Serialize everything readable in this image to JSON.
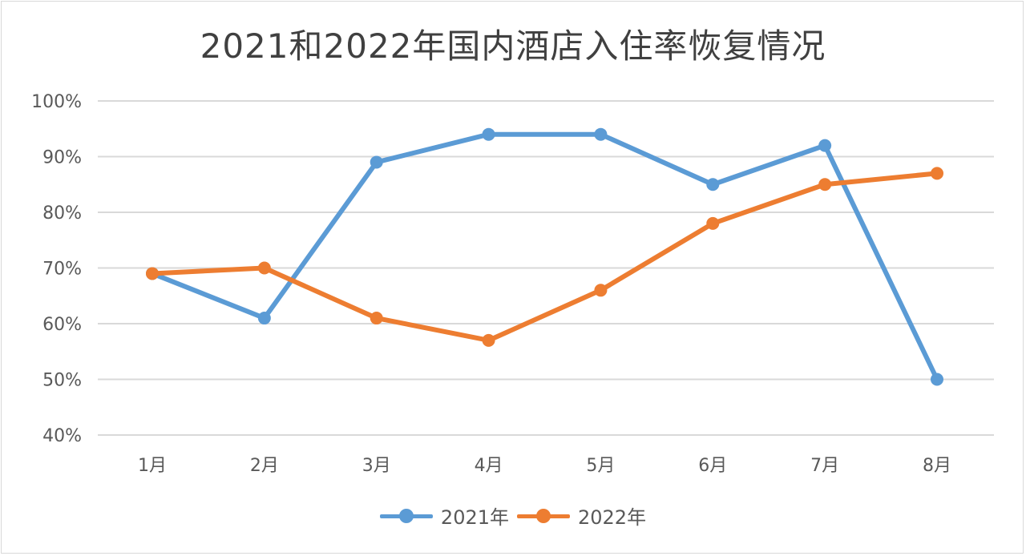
{
  "chart_data": {
    "type": "line",
    "title": "2021和2022年国内酒店入住率恢复情况",
    "categories": [
      "1月",
      "2月",
      "3月",
      "4月",
      "5月",
      "6月",
      "7月",
      "8月"
    ],
    "series": [
      {
        "name": "2021年",
        "color": "#5b9bd5",
        "values": [
          69,
          61,
          89,
          94,
          94,
          85,
          92,
          50
        ]
      },
      {
        "name": "2022年",
        "color": "#ed7d31",
        "values": [
          69,
          70,
          61,
          57,
          66,
          78,
          85,
          87
        ]
      }
    ],
    "ylim": [
      40,
      100
    ],
    "yticks": [
      "40%",
      "50%",
      "60%",
      "70%",
      "80%",
      "90%",
      "100%"
    ],
    "grid": true,
    "legend": "bottom",
    "gridColor": "#d9d9d9"
  }
}
